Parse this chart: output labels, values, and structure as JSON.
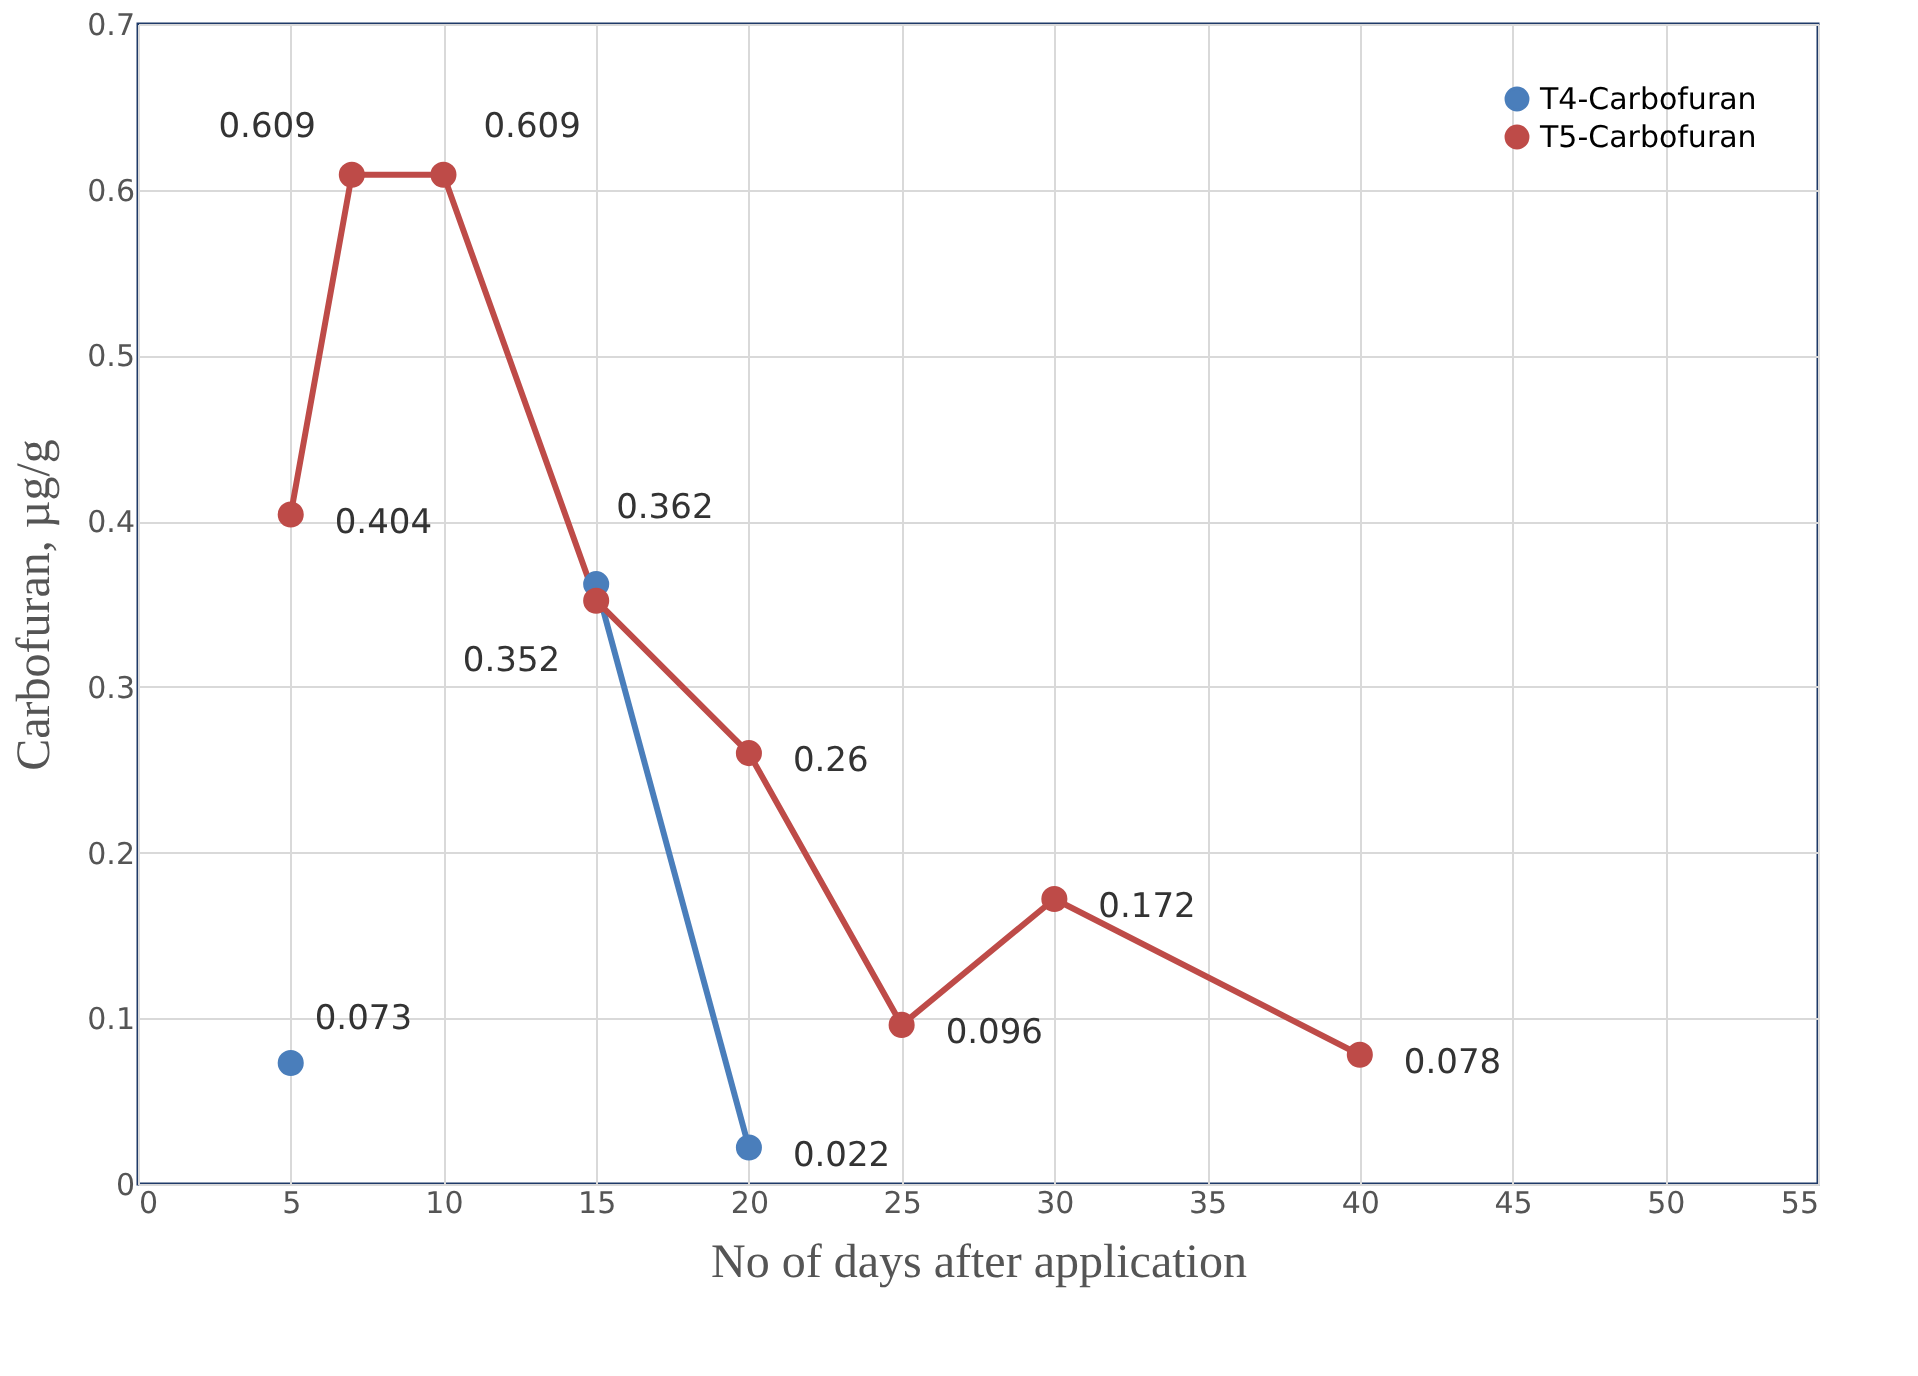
{
  "chart_data": {
    "type": "line",
    "xlabel": "No of days after application",
    "ylabel": "Carbofuran, µg/g",
    "xlim": [
      0,
      55
    ],
    "xticks": [
      0,
      5,
      10,
      15,
      20,
      25,
      30,
      35,
      40,
      45,
      50,
      55
    ],
    "ylim": [
      0,
      0.7
    ],
    "yticks": [
      0,
      0.1,
      0.2,
      0.3,
      0.4,
      0.5,
      0.6,
      0.7
    ],
    "grid": true,
    "legend": "top right",
    "marker": "circle",
    "line_style": "solid",
    "data_labels": true,
    "series": [
      {
        "name": "T4-Carbofuran",
        "color": "#4a7ebb",
        "x": [
          5,
          10,
          15,
          20
        ],
        "values": [
          0.073,
          null,
          0.362,
          0.022
        ]
      },
      {
        "name": "T5-Carbofuran",
        "color": "#be4b48",
        "x": [
          5,
          7,
          10,
          15,
          20,
          25,
          30,
          40
        ],
        "values": [
          0.404,
          0.609,
          0.609,
          0.352,
          0.26,
          0.096,
          0.172,
          0.078
        ]
      }
    ]
  }
}
